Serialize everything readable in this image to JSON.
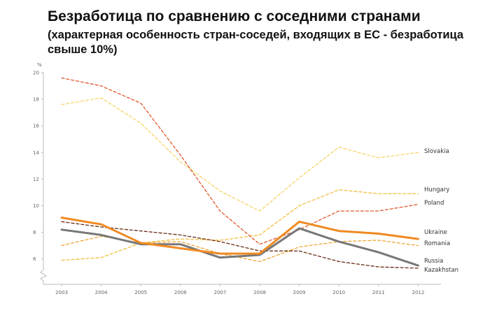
{
  "chart_data": {
    "type": "line",
    "title": "Безработица по сравнению с соседними странами",
    "subtitle": "(характерная особенность стран-соседей, входящих в ЕС - безработица свыше 10%)",
    "ylabel": "%",
    "xlabel": "",
    "categories": [
      "2003",
      "2004",
      "2005",
      "2006",
      "2007",
      "2008",
      "2009",
      "2010",
      "2011",
      "2012"
    ],
    "y_ticks": [
      "20",
      "18",
      "16",
      "14",
      "12",
      "10",
      "8",
      "6"
    ],
    "ylim": [
      4.7,
      20
    ],
    "grid": false,
    "series": [
      {
        "name": "Slovakia",
        "style": "dashed",
        "color": "#f5d56a",
        "values": [
          17.6,
          18.1,
          16.2,
          13.3,
          11.1,
          9.6,
          12.1,
          14.4,
          13.6,
          14.0
        ]
      },
      {
        "name": "Hungary",
        "style": "dashed",
        "color": "#f2bd3c",
        "values": [
          5.9,
          6.1,
          7.2,
          7.5,
          7.4,
          7.8,
          10.0,
          11.2,
          10.9,
          10.9
        ]
      },
      {
        "name": "Poland",
        "style": "dashed",
        "color": "#e0582a",
        "values": [
          19.6,
          19.0,
          17.7,
          13.8,
          9.6,
          7.1,
          8.2,
          9.6,
          9.6,
          10.1
        ]
      },
      {
        "name": "Ukraine",
        "style": "solid",
        "color": "#ef8a22",
        "values": [
          9.1,
          8.6,
          7.2,
          6.8,
          6.4,
          6.4,
          8.8,
          8.1,
          7.9,
          7.5
        ]
      },
      {
        "name": "Romania",
        "style": "dashed",
        "color": "#f0a535",
        "values": [
          7.0,
          7.7,
          7.2,
          7.3,
          6.4,
          5.8,
          6.9,
          7.3,
          7.4,
          7.0
        ]
      },
      {
        "name": "Russia",
        "style": "solid",
        "color": "#777777",
        "values": [
          8.2,
          7.8,
          7.1,
          7.1,
          6.1,
          6.3,
          8.3,
          7.3,
          6.5,
          5.5
        ]
      },
      {
        "name": "Kazakhstan",
        "style": "dashed",
        "color": "#6b2a14",
        "values": [
          8.8,
          8.4,
          8.1,
          7.8,
          7.3,
          6.6,
          6.6,
          5.8,
          5.4,
          5.3
        ]
      }
    ]
  }
}
